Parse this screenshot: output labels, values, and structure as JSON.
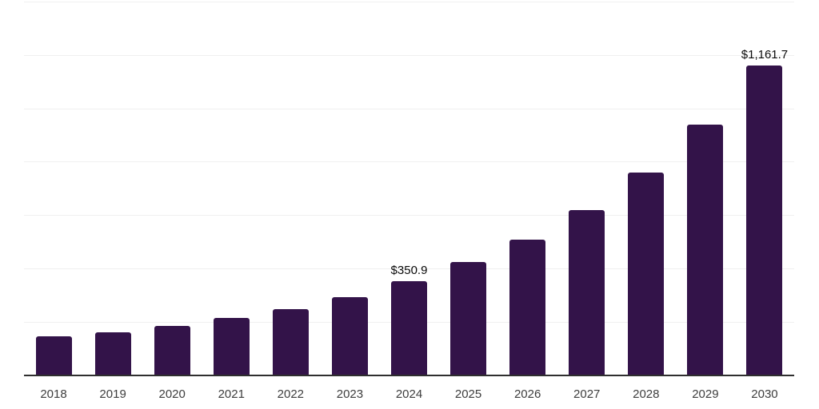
{
  "chart_data": {
    "type": "bar",
    "title": "",
    "xlabel": "",
    "ylabel": "",
    "categories": [
      "2018",
      "2019",
      "2020",
      "2021",
      "2022",
      "2023",
      "2024",
      "2025",
      "2026",
      "2027",
      "2028",
      "2029",
      "2030"
    ],
    "values": [
      146.0,
      161.0,
      185.0,
      214.0,
      248.0,
      293.0,
      350.9,
      424.0,
      508.0,
      617.0,
      760.0,
      940.0,
      1161.7
    ],
    "value_labels": [
      "",
      "",
      "",
      "",
      "",
      "",
      "$350.9",
      "",
      "",
      "",
      "",
      "",
      "$1,161.7"
    ],
    "ylim": [
      0,
      1400
    ],
    "gridline_step": 200,
    "grid": "horizontal-only",
    "legend_position": "none",
    "y_axis_tick_labels_visible": false,
    "colors": {
      "bar": "#331349",
      "gridline": "#f0f0f0",
      "axis_line": "#2f2f2f",
      "value_label": "#0a0a0a",
      "tick_label": "#3d3d3d",
      "background": "#ffffff"
    }
  }
}
